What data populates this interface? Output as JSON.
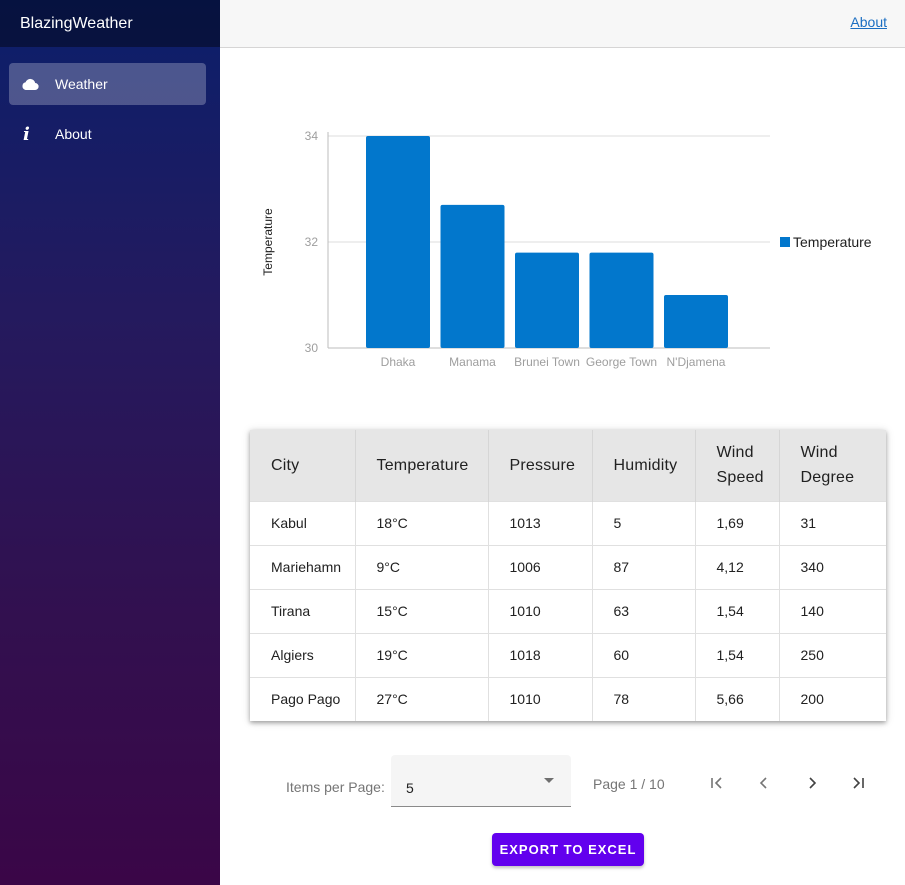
{
  "app": {
    "brand": "BlazingWeather"
  },
  "sidebar": {
    "items": [
      {
        "label": "Weather",
        "icon": "cloud-icon",
        "active": true
      },
      {
        "label": "About",
        "icon": "info-icon",
        "active": false
      }
    ]
  },
  "topbar": {
    "about_link": "About"
  },
  "chart_data": {
    "type": "bar",
    "categories": [
      "Dhaka",
      "Manama",
      "Brunei Town",
      "George Town",
      "N'Djamena"
    ],
    "series": [
      {
        "name": "Temperature",
        "values": [
          34,
          32.7,
          31.8,
          31.8,
          31
        ]
      }
    ],
    "title": "",
    "xlabel": "",
    "ylabel": "Temperature",
    "ylim": [
      30,
      34
    ],
    "yticks": [
      "30",
      "32",
      "34"
    ],
    "grid": true,
    "legend": "right",
    "color": "#0277cc"
  },
  "table": {
    "headers": [
      "City",
      "Temperature",
      "Pressure",
      "Humidity",
      "Wind Speed",
      "Wind Degree"
    ],
    "rows": [
      [
        "Kabul",
        "18°C",
        "1013",
        "5",
        "1,69",
        "31"
      ],
      [
        "Mariehamn",
        "9°C",
        "1006",
        "87",
        "4,12",
        "340"
      ],
      [
        "Tirana",
        "15°C",
        "1010",
        "63",
        "1,54",
        "140"
      ],
      [
        "Algiers",
        "19°C",
        "1018",
        "60",
        "1,54",
        "250"
      ],
      [
        "Pago Pago",
        "27°C",
        "1010",
        "78",
        "5,66",
        "200"
      ]
    ]
  },
  "pager": {
    "items_per_page_label": "Items per Page:",
    "items_per_page": "5",
    "page_info": "Page 1 / 10",
    "buttons": [
      "first-page-icon",
      "previous-page-icon",
      "next-page-icon",
      "last-page-icon"
    ]
  },
  "export": {
    "label": "EXPORT TO EXCEL"
  }
}
